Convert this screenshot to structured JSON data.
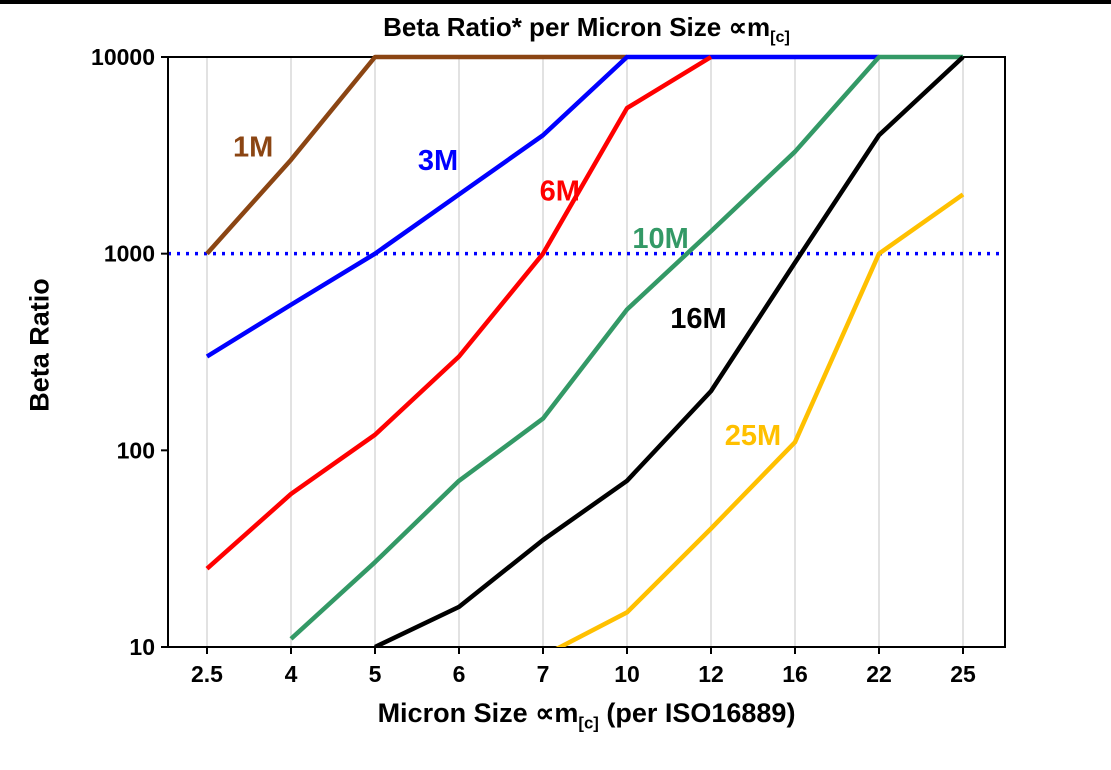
{
  "title": {
    "main": "Beta Ratio* per Micron Size ",
    "sym": "∝m",
    "sub": "[c]"
  },
  "x_axis": {
    "label_pre": "Micron Size ",
    "sym": "∝m",
    "sub": "[c]",
    "label_post": " (per ISO16889)"
  },
  "y_axis": {
    "label": "Beta Ratio"
  },
  "chart_data": {
    "type": "line",
    "x_scale": "categorical",
    "y_scale": "log",
    "categories": [
      "2.5",
      "4",
      "5",
      "6",
      "7",
      "10",
      "12",
      "16",
      "22",
      "25"
    ],
    "y_ticks": [
      10,
      100,
      1000,
      10000
    ],
    "ylim": [
      10,
      10000
    ],
    "grid": "vertical-category-lines",
    "grid_color": "#d9d9d9",
    "frame_color": "#000000",
    "reference_line": {
      "y": 1000,
      "color": "#0000ff",
      "style": "dotted"
    },
    "series": [
      {
        "name": "1M",
        "color": "#8B4513",
        "values": [
          1000,
          3000,
          10000,
          10000,
          10000,
          10000,
          null,
          null,
          null,
          null
        ],
        "label_pos": {
          "xi": 0.55,
          "y": 3500
        }
      },
      {
        "name": "3M",
        "color": "#0000FF",
        "values": [
          300,
          550,
          1000,
          2000,
          4000,
          10000,
          10000,
          10000,
          10000,
          null
        ],
        "label_pos": {
          "xi": 2.75,
          "y": 3000
        }
      },
      {
        "name": "6M",
        "color": "#FF0000",
        "values": [
          25,
          60,
          120,
          300,
          1000,
          5500,
          10000,
          null,
          null,
          null
        ],
        "label_pos": {
          "xi": 4.2,
          "y": 2100
        }
      },
      {
        "name": "10M",
        "color": "#339966",
        "values": [
          null,
          11,
          27,
          70,
          145,
          520,
          1300,
          3300,
          10000,
          10000
        ],
        "label_pos": {
          "xi": 5.4,
          "y": 1200
        }
      },
      {
        "name": "16M",
        "color": "#000000",
        "values": [
          null,
          null,
          10,
          16,
          35,
          70,
          200,
          900,
          4000,
          10000
        ],
        "label_pos": {
          "xi": 5.85,
          "y": 470
        }
      },
      {
        "name": "25M",
        "color": "#FFC000",
        "values": [
          null,
          null,
          null,
          null,
          9,
          15,
          40,
          110,
          1000,
          2000
        ],
        "label_pos": {
          "xi": 6.5,
          "y": 120
        }
      }
    ]
  }
}
